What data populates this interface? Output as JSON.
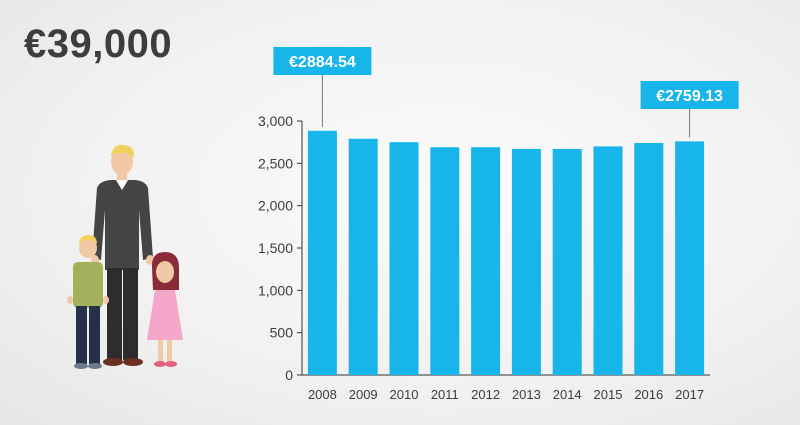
{
  "headline": "€39,000",
  "illustration": {
    "name": "family-illustration"
  },
  "colors": {
    "bar": "#17b5ea",
    "callout": "#17b5ea",
    "text": "#3d3d3d",
    "axis": "#333333"
  },
  "callouts": [
    {
      "label": "€2884.54",
      "category": "2008"
    },
    {
      "label": "€2759.13",
      "category": "2017"
    }
  ],
  "chart_data": {
    "type": "bar",
    "categories": [
      "2008",
      "2009",
      "2010",
      "2011",
      "2012",
      "2013",
      "2014",
      "2015",
      "2016",
      "2017"
    ],
    "values": [
      2884.54,
      2790,
      2750,
      2690,
      2690,
      2670,
      2670,
      2700,
      2740,
      2759.13
    ],
    "ylim": [
      0,
      3000
    ],
    "yticks": [
      0,
      500,
      1000,
      1500,
      2000,
      2500,
      3000
    ],
    "ytick_labels": [
      "0",
      "500",
      "1,000",
      "1,500",
      "2,000",
      "2,500",
      "3,000"
    ],
    "title": "",
    "xlabel": "",
    "ylabel": "",
    "grid": false,
    "legend": "none"
  }
}
